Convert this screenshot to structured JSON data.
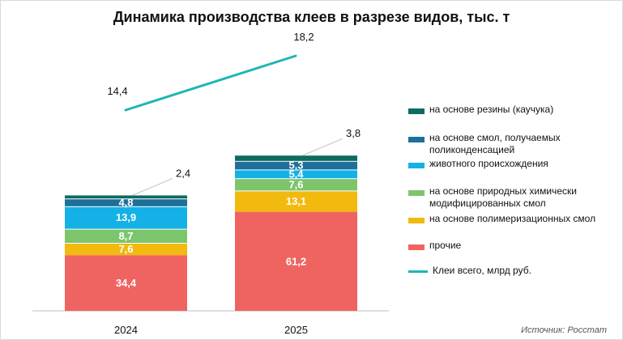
{
  "chart_data": {
    "type": "bar",
    "title": "Динамика производства клеев в разрезе видов, тыс. т",
    "categories": [
      "2024",
      "2025"
    ],
    "series": [
      {
        "name": "прочие",
        "values": [
          34.4,
          61.2
        ],
        "labels": [
          "34,4",
          "61,2"
        ],
        "color": "#ef6461"
      },
      {
        "name": "на основе полимеризационных смол",
        "values": [
          7.6,
          13.1
        ],
        "labels": [
          "7,6",
          "13,1"
        ],
        "color": "#f2b90f"
      },
      {
        "name": "на основе природных химически модифицированных смол",
        "values": [
          8.7,
          7.6
        ],
        "labels": [
          "8,7",
          "7,6"
        ],
        "color": "#7dc56c"
      },
      {
        "name": "животного происхождения",
        "values": [
          13.9,
          5.4
        ],
        "labels": [
          "13,9",
          "5,4"
        ],
        "color": "#14b1e7"
      },
      {
        "name": "на основе смол, получаемых поликонденсацией",
        "values": [
          4.8,
          5.3
        ],
        "labels": [
          "4,8",
          "5,3"
        ],
        "color": "#1e6f9a"
      },
      {
        "name": "на основе резины (каучука)",
        "values": [
          2.4,
          3.8
        ],
        "labels": [
          "2,4",
          "3,8"
        ],
        "color": "#0d6b60"
      }
    ],
    "line": {
      "name": "Клеи всего, млрд руб.",
      "values": [
        14.4,
        18.2
      ],
      "labels": [
        "14,4",
        "18,2"
      ],
      "color": "#1fb5b5"
    },
    "source": "Источник: Росстат"
  }
}
